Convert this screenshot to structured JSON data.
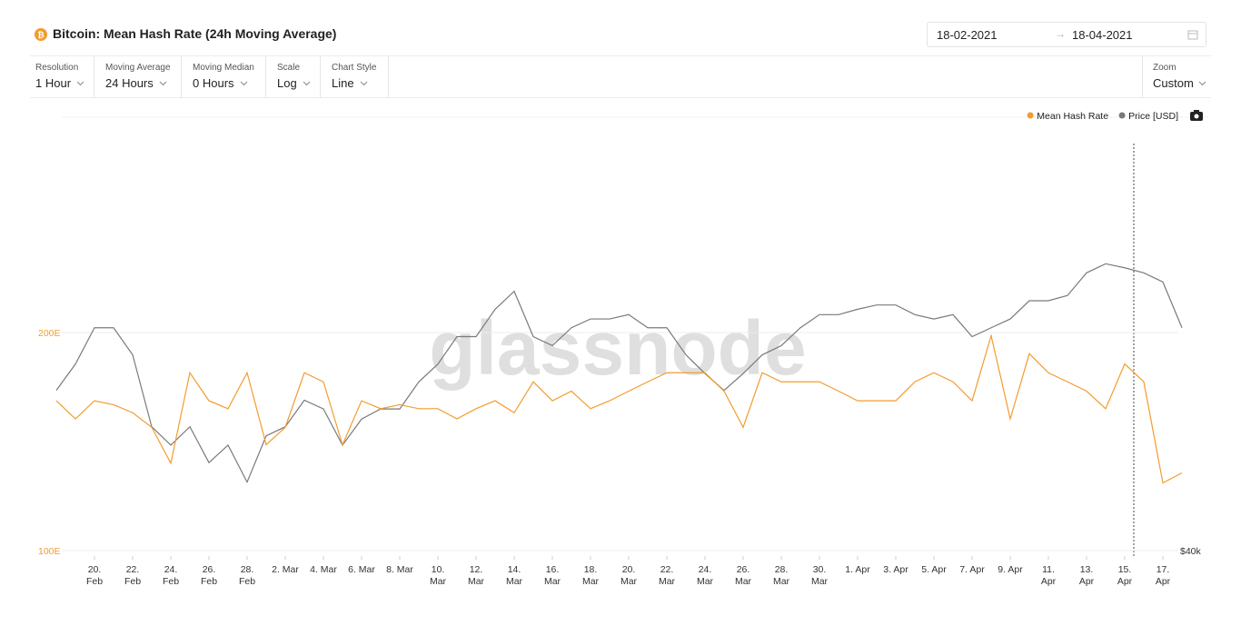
{
  "ui": {
    "date_from": "18-02-2021",
    "date_to": "18-04-2021",
    "controls": [
      {
        "label": "Resolution",
        "value": "1 Hour"
      },
      {
        "label": "Moving Average",
        "value": "24 Hours"
      },
      {
        "label": "Moving Median",
        "value": "0 Hours"
      },
      {
        "label": "Scale",
        "value": "Log"
      },
      {
        "label": "Chart Style",
        "value": "Line"
      }
    ],
    "zoom": {
      "label": "Zoom",
      "value": "Custom"
    }
  },
  "chart_data": {
    "type": "line",
    "title": "Bitcoin: Mean Hash Rate (24h Moving Average)",
    "watermark": "glassnode",
    "x": [
      "18 Feb",
      "19 Feb",
      "20 Feb",
      "21 Feb",
      "22 Feb",
      "23 Feb",
      "24 Feb",
      "25 Feb",
      "26 Feb",
      "27 Feb",
      "28 Feb",
      "1 Mar",
      "2 Mar",
      "3 Mar",
      "4 Mar",
      "5 Mar",
      "6 Mar",
      "7 Mar",
      "8 Mar",
      "9 Mar",
      "10 Mar",
      "11 Mar",
      "12 Mar",
      "13 Mar",
      "14 Mar",
      "15 Mar",
      "16 Mar",
      "17 Mar",
      "18 Mar",
      "19 Mar",
      "20 Mar",
      "21 Mar",
      "22 Mar",
      "23 Mar",
      "24 Mar",
      "25 Mar",
      "26 Mar",
      "27 Mar",
      "28 Mar",
      "29 Mar",
      "30 Mar",
      "31 Mar",
      "1 Apr",
      "2 Apr",
      "3 Apr",
      "4 Apr",
      "5 Apr",
      "6 Apr",
      "7 Apr",
      "8 Apr",
      "9 Apr",
      "10 Apr",
      "11 Apr",
      "12 Apr",
      "13 Apr",
      "14 Apr",
      "15 Apr",
      "16 Apr",
      "17 Apr",
      "18 Apr"
    ],
    "series": [
      {
        "name": "Mean Hash Rate",
        "color": "#f39c2e",
        "values": [
          161,
          152,
          161,
          159,
          155,
          148,
          132,
          176,
          161,
          157,
          176,
          140,
          148,
          176,
          171,
          140,
          161,
          157,
          159,
          157,
          157,
          152,
          157,
          161,
          155,
          171,
          161,
          166,
          157,
          161,
          166,
          171,
          176,
          176,
          176,
          166,
          148,
          176,
          171,
          171,
          171,
          166,
          161,
          161,
          161,
          171,
          176,
          171,
          161,
          198,
          152,
          187,
          176,
          171,
          166,
          157,
          181,
          171,
          124,
          128
        ]
      },
      {
        "name": "Price [USD]",
        "color": "#7a7a7a",
        "axis": "y2",
        "values": [
          51600,
          53800,
          57000,
          57000,
          54600,
          48700,
          47300,
          48700,
          46000,
          47300,
          44600,
          48000,
          48700,
          50800,
          50100,
          47300,
          49300,
          50100,
          50100,
          52300,
          53800,
          56200,
          56200,
          58700,
          60400,
          56200,
          55400,
          57000,
          57800,
          57800,
          58200,
          57000,
          57000,
          54600,
          53000,
          51600,
          53000,
          54600,
          55400,
          57000,
          58200,
          58200,
          58700,
          59100,
          59100,
          58200,
          57800,
          58200,
          56200,
          57000,
          57800,
          59500,
          59500,
          60000,
          62200,
          63100,
          62700,
          62200,
          61300,
          57000
        ]
      }
    ],
    "yscale": "log",
    "ylim": [
      100,
      400
    ],
    "yticks": [
      {
        "value": 100,
        "label": "100E"
      },
      {
        "value": 200,
        "label": "200E"
      }
    ],
    "y2scale": "log",
    "y2lim": [
      40000,
      80000
    ],
    "y2ticks": [
      {
        "value": 40000,
        "label": "$40k"
      }
    ],
    "xticks": [
      {
        "value": "20 Feb",
        "label": [
          "20.",
          "Feb"
        ]
      },
      {
        "value": "22 Feb",
        "label": [
          "22.",
          "Feb"
        ]
      },
      {
        "value": "24 Feb",
        "label": [
          "24.",
          "Feb"
        ]
      },
      {
        "value": "26 Feb",
        "label": [
          "26.",
          "Feb"
        ]
      },
      {
        "value": "28 Feb",
        "label": [
          "28.",
          "Feb"
        ]
      },
      {
        "value": "2 Mar",
        "label": "2. Mar"
      },
      {
        "value": "4 Mar",
        "label": "4. Mar"
      },
      {
        "value": "6 Mar",
        "label": "6. Mar"
      },
      {
        "value": "8 Mar",
        "label": "8. Mar"
      },
      {
        "value": "10 Mar",
        "label": [
          "10.",
          "Mar"
        ]
      },
      {
        "value": "12 Mar",
        "label": [
          "12.",
          "Mar"
        ]
      },
      {
        "value": "14 Mar",
        "label": [
          "14.",
          "Mar"
        ]
      },
      {
        "value": "16 Mar",
        "label": [
          "16.",
          "Mar"
        ]
      },
      {
        "value": "18 Mar",
        "label": [
          "18.",
          "Mar"
        ]
      },
      {
        "value": "20 Mar",
        "label": [
          "20.",
          "Mar"
        ]
      },
      {
        "value": "22 Mar",
        "label": [
          "22.",
          "Mar"
        ]
      },
      {
        "value": "24 Mar",
        "label": [
          "24.",
          "Mar"
        ]
      },
      {
        "value": "26 Mar",
        "label": [
          "26.",
          "Mar"
        ]
      },
      {
        "value": "28 Mar",
        "label": [
          "28.",
          "Mar"
        ]
      },
      {
        "value": "30 Mar",
        "label": [
          "30.",
          "Mar"
        ]
      },
      {
        "value": "1 Apr",
        "label": "1. Apr"
      },
      {
        "value": "3 Apr",
        "label": "3. Apr"
      },
      {
        "value": "5 Apr",
        "label": "5. Apr"
      },
      {
        "value": "7 Apr",
        "label": "7. Apr"
      },
      {
        "value": "9 Apr",
        "label": "9. Apr"
      },
      {
        "value": "11 Apr",
        "label": [
          "11.",
          "Apr"
        ]
      },
      {
        "value": "13 Apr",
        "label": [
          "13.",
          "Apr"
        ]
      },
      {
        "value": "15 Apr",
        "label": [
          "15.",
          "Apr"
        ]
      },
      {
        "value": "17 Apr",
        "label": [
          "17.",
          "Apr"
        ]
      }
    ],
    "grid": true,
    "legend": "top-right"
  }
}
